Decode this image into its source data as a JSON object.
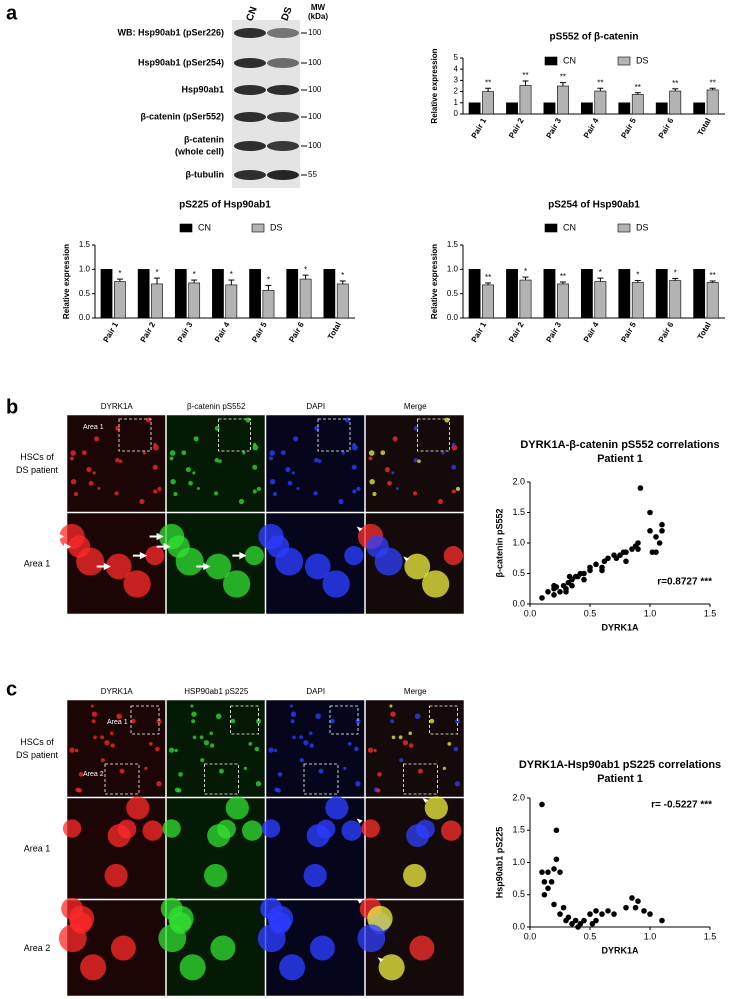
{
  "figure": {
    "panel_labels": [
      "a",
      "b",
      "c"
    ]
  },
  "western_blot": {
    "columns": [
      "CN",
      "DS"
    ],
    "mw_header": [
      "MW",
      "(kDa)"
    ],
    "rows": [
      {
        "label": [
          "WB: Hsp90ab1 (pSer226)"
        ],
        "mw": "100"
      },
      {
        "label": [
          "Hsp90ab1 (pSer254)"
        ],
        "mw": "100"
      },
      {
        "label": [
          "Hsp90ab1"
        ],
        "mw": "100"
      },
      {
        "label": [
          "β-catenin (pSer552)"
        ],
        "mw": "100"
      },
      {
        "label": [
          "β-catenin",
          "(whole cell)"
        ],
        "mw": "100"
      },
      {
        "label": [
          "β-tubulin"
        ],
        "mw": "55"
      }
    ]
  },
  "chart_data": [
    {
      "type": "bar",
      "title": "pS552 of β-catenin",
      "y_label": "Relative expression",
      "categories": [
        "Pair 1",
        "Pair 2",
        "Pair 3",
        "Pair 4",
        "Pair 5",
        "Pair 6",
        "Total"
      ],
      "series": [
        {
          "name": "CN",
          "color": "#000000",
          "values": [
            1,
            1,
            1,
            1,
            1,
            1,
            1
          ]
        },
        {
          "name": "DS",
          "color": "#b3b3b3",
          "values": [
            2.0,
            2.55,
            2.5,
            2.05,
            1.75,
            2.05,
            2.15
          ],
          "errors": [
            0.3,
            0.4,
            0.3,
            0.25,
            0.15,
            0.2,
            0.15
          ],
          "significance": [
            "**",
            "**",
            "**",
            "**",
            "**",
            "**",
            "**"
          ]
        }
      ],
      "ylim": [
        0,
        5
      ],
      "yticks": [
        0,
        1,
        2,
        3,
        4,
        5
      ],
      "legend": "top"
    },
    {
      "type": "bar",
      "title": "pS225 of Hsp90ab1",
      "y_label": "Relative expression",
      "categories": [
        "Pair 1",
        "Pair 2",
        "Pair 3",
        "Pair 4",
        "Pair 5",
        "Pair 6",
        "Total"
      ],
      "series": [
        {
          "name": "CN",
          "color": "#000000",
          "values": [
            1,
            1,
            1,
            1,
            1,
            1,
            1
          ]
        },
        {
          "name": "DS",
          "color": "#b3b3b3",
          "values": [
            0.75,
            0.7,
            0.72,
            0.68,
            0.57,
            0.8,
            0.7
          ],
          "errors": [
            0.05,
            0.12,
            0.06,
            0.1,
            0.1,
            0.08,
            0.06
          ],
          "significance": [
            "*",
            "*",
            "*",
            "*",
            "*",
            "*",
            "*"
          ]
        }
      ],
      "ylim": [
        0,
        1.5
      ],
      "yticks": [
        {
          "value": 0,
          "label": "0.0"
        },
        0.5,
        {
          "value": 1,
          "label": "1.0"
        },
        1.5
      ],
      "legend": "top"
    },
    {
      "type": "bar",
      "title": "pS254 of Hsp90ab1",
      "y_label": "Relative expression",
      "categories": [
        "Pair 1",
        "Pair 2",
        "Pair 3",
        "Pair 4",
        "Pair 5",
        "Pair 6",
        "Total"
      ],
      "series": [
        {
          "name": "CN",
          "color": "#000000",
          "values": [
            1,
            1,
            1,
            1,
            1,
            1,
            1
          ]
        },
        {
          "name": "DS",
          "color": "#b3b3b3",
          "values": [
            0.68,
            0.78,
            0.7,
            0.75,
            0.73,
            0.77,
            0.73
          ],
          "errors": [
            0.04,
            0.06,
            0.04,
            0.07,
            0.04,
            0.04,
            0.03
          ],
          "significance": [
            "**",
            "*",
            "**",
            "*",
            "*",
            "*",
            "**"
          ]
        }
      ],
      "ylim": [
        0,
        1.5
      ],
      "yticks": [
        {
          "value": 0,
          "label": "0.0"
        },
        0.5,
        {
          "value": 1,
          "label": "1.0"
        },
        1.5
      ],
      "legend": "top"
    },
    {
      "type": "scatter",
      "title": "DYRK1A-β-catenin pS552 correlations",
      "subtitle": "Patient 1",
      "x_label": "DYRK1A",
      "y_label": "β-catenin pS552",
      "annotation": "r=0.8727 ***",
      "color": "#000000",
      "x": [
        0.1,
        0.15,
        0.2,
        0.2,
        0.2,
        0.22,
        0.25,
        0.28,
        0.3,
        0.3,
        0.32,
        0.33,
        0.35,
        0.35,
        0.38,
        0.4,
        0.42,
        0.45,
        0.45,
        0.5,
        0.5,
        0.55,
        0.6,
        0.6,
        0.62,
        0.65,
        0.7,
        0.72,
        0.75,
        0.78,
        0.8,
        0.8,
        0.85,
        0.88,
        0.9,
        0.9,
        0.92,
        1.0,
        1.0,
        1.02,
        1.05,
        1.05,
        1.08,
        1.1,
        1.1
      ],
      "values": [
        0.1,
        0.2,
        0.3,
        0.25,
        0.15,
        0.28,
        0.2,
        0.3,
        0.25,
        0.2,
        0.35,
        0.45,
        0.4,
        0.3,
        0.45,
        0.45,
        0.5,
        0.5,
        0.4,
        0.55,
        0.6,
        0.65,
        0.6,
        0.55,
        0.7,
        0.75,
        0.8,
        0.75,
        0.8,
        0.85,
        0.85,
        0.7,
        0.9,
        0.95,
        0.9,
        1.0,
        1.9,
        1.2,
        1.5,
        0.85,
        1.1,
        0.85,
        1.0,
        1.3,
        1.2
      ],
      "xlim": [
        0,
        1.5
      ],
      "xticks": [
        {
          "value": 0,
          "label": "0.0"
        },
        0.5,
        {
          "value": 1,
          "label": "1.0"
        },
        1.5
      ],
      "ylim": [
        0,
        2
      ],
      "yticks": [
        {
          "value": 0,
          "label": "0.0"
        },
        0.5,
        {
          "value": 1,
          "label": "1.0"
        },
        1.5,
        {
          "value": 2,
          "label": "2.0"
        }
      ]
    },
    {
      "type": "scatter",
      "title": "DYRK1A-Hsp90ab1 pS225 correlations",
      "subtitle": "Patient 1",
      "x_label": "DYRK1A",
      "y_label": "Hsp90ab1 pS225",
      "annotation": "r= -0.5227 ***",
      "color": "#000000",
      "x": [
        0.1,
        0.1,
        0.12,
        0.12,
        0.15,
        0.15,
        0.18,
        0.2,
        0.22,
        0.22,
        0.2,
        0.25,
        0.25,
        0.28,
        0.3,
        0.32,
        0.35,
        0.38,
        0.4,
        0.42,
        0.45,
        0.5,
        0.52,
        0.55,
        0.55,
        0.6,
        0.65,
        0.7,
        0.8,
        0.85,
        0.88,
        0.9,
        0.95,
        1.0,
        1.1
      ],
      "values": [
        1.9,
        0.85,
        0.7,
        0.5,
        0.6,
        0.85,
        0.7,
        0.9,
        1.5,
        1.05,
        0.35,
        0.85,
        0.2,
        0.3,
        0.1,
        0.15,
        0.05,
        0.1,
        0.0,
        0.05,
        0.1,
        0.2,
        0.05,
        0.25,
        0.1,
        0.2,
        0.25,
        0.2,
        0.3,
        0.45,
        0.3,
        0.4,
        0.25,
        0.2,
        0.1
      ],
      "xlim": [
        0,
        1.5
      ],
      "xticks": [
        {
          "value": 0,
          "label": "0.0"
        },
        0.5,
        {
          "value": 1,
          "label": "1.0"
        },
        1.5
      ],
      "ylim": [
        0,
        2
      ],
      "yticks": [
        {
          "value": 0,
          "label": "0.0"
        },
        0.5,
        {
          "value": 1,
          "label": "1.0"
        },
        1.5,
        {
          "value": 2,
          "label": "2.0"
        }
      ]
    }
  ],
  "microscopy": [
    {
      "columns": [
        "DYRK1A",
        "β-catenin pS552",
        "DAPI",
        "Merge"
      ],
      "rows": [
        [
          "HSCs of",
          "DS patient"
        ],
        [
          "Area 1"
        ]
      ],
      "insets": [
        "Area 1"
      ]
    },
    {
      "columns": [
        "DYRK1A",
        "HSP90ab1 pS225",
        "DAPI",
        "Merge"
      ],
      "rows": [
        [
          "HSCs of",
          "DS patient"
        ],
        [
          "Area 1"
        ],
        [
          "Area 2"
        ]
      ],
      "insets": [
        "Area 1",
        "Area 2"
      ]
    }
  ]
}
